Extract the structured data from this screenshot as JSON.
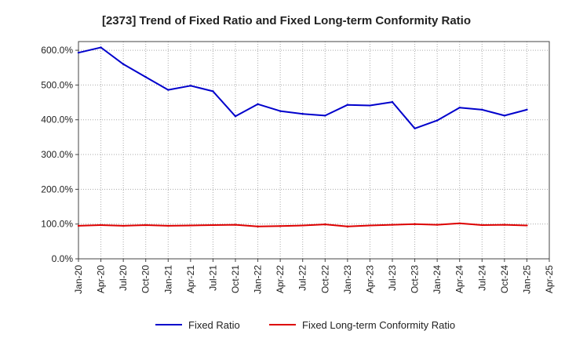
{
  "chart_data": {
    "type": "line",
    "title": "[2373]  Trend of Fixed Ratio and Fixed Long-term Conformity Ratio",
    "xlabel": "",
    "ylabel": "",
    "x_tick_labels": [
      "Jan-20",
      "Apr-20",
      "Jul-20",
      "Oct-20",
      "Jan-21",
      "Apr-21",
      "Jul-21",
      "Oct-21",
      "Jan-22",
      "Apr-22",
      "Jul-22",
      "Oct-22",
      "Jan-23",
      "Apr-23",
      "Jul-23",
      "Oct-23",
      "Jan-24",
      "Apr-24",
      "Jul-24",
      "Oct-24",
      "Jan-25",
      "Apr-25"
    ],
    "y_tick_labels": [
      "0.0%",
      "100.0%",
      "200.0%",
      "300.0%",
      "400.0%",
      "500.0%",
      "600.0%"
    ],
    "y_ticks": [
      0,
      100,
      200,
      300,
      400,
      500,
      600
    ],
    "ylim": [
      0,
      625
    ],
    "grid": true,
    "legend_position": "bottom",
    "x": [
      "Jan-20",
      "Apr-20",
      "Jul-20",
      "Oct-20",
      "Jan-21",
      "Apr-21",
      "Jul-21",
      "Oct-21",
      "Jan-22",
      "Apr-22",
      "Jul-22",
      "Oct-22",
      "Jan-23",
      "Apr-23",
      "Jul-23",
      "Oct-23",
      "Jan-24",
      "Apr-24",
      "Jul-24",
      "Oct-24",
      "Jan-25"
    ],
    "series": [
      {
        "name": "Fixed Ratio",
        "color": "#0000cc",
        "values": [
          593,
          608,
          560,
          523,
          486,
          498,
          482,
          410,
          445,
          425,
          417,
          412,
          443,
          441,
          451,
          375,
          398,
          435,
          429,
          412,
          429
        ]
      },
      {
        "name": "Fixed Long-term Conformity Ratio",
        "color": "#dd0000",
        "values": [
          95,
          97,
          95,
          97,
          95,
          96,
          97,
          98,
          93,
          94,
          96,
          99,
          93,
          96,
          98,
          100,
          98,
          102,
          97,
          98,
          96
        ]
      }
    ]
  }
}
